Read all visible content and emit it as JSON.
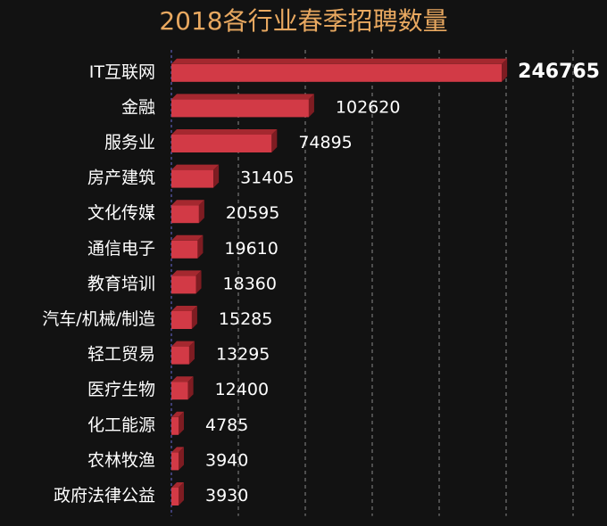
{
  "chart_data": {
    "type": "bar",
    "orientation": "horizontal",
    "title": "2018各行业春季招聘数量",
    "categories": [
      "IT互联网",
      "金融",
      "服务业",
      "房产建筑",
      "文化传媒",
      "通信电子",
      "教育培训",
      "汽车/机械/制造",
      "轻工贸易",
      "医疗生物",
      "化工能源",
      "农林牧渔",
      "政府法律公益"
    ],
    "values": [
      246765,
      102620,
      74895,
      31405,
      20595,
      19610,
      18360,
      15285,
      13295,
      12400,
      4785,
      3940,
      3930
    ],
    "xlim": [
      0,
      300000
    ],
    "grid": "vertical dashed",
    "colors": {
      "background": "#121212",
      "bar": "#d23a46",
      "bar_top": "#a5282f",
      "bar_side": "#7e1c22",
      "title": "#e8a860",
      "text": "#ffffff",
      "grid": "#8a8a8a"
    }
  }
}
